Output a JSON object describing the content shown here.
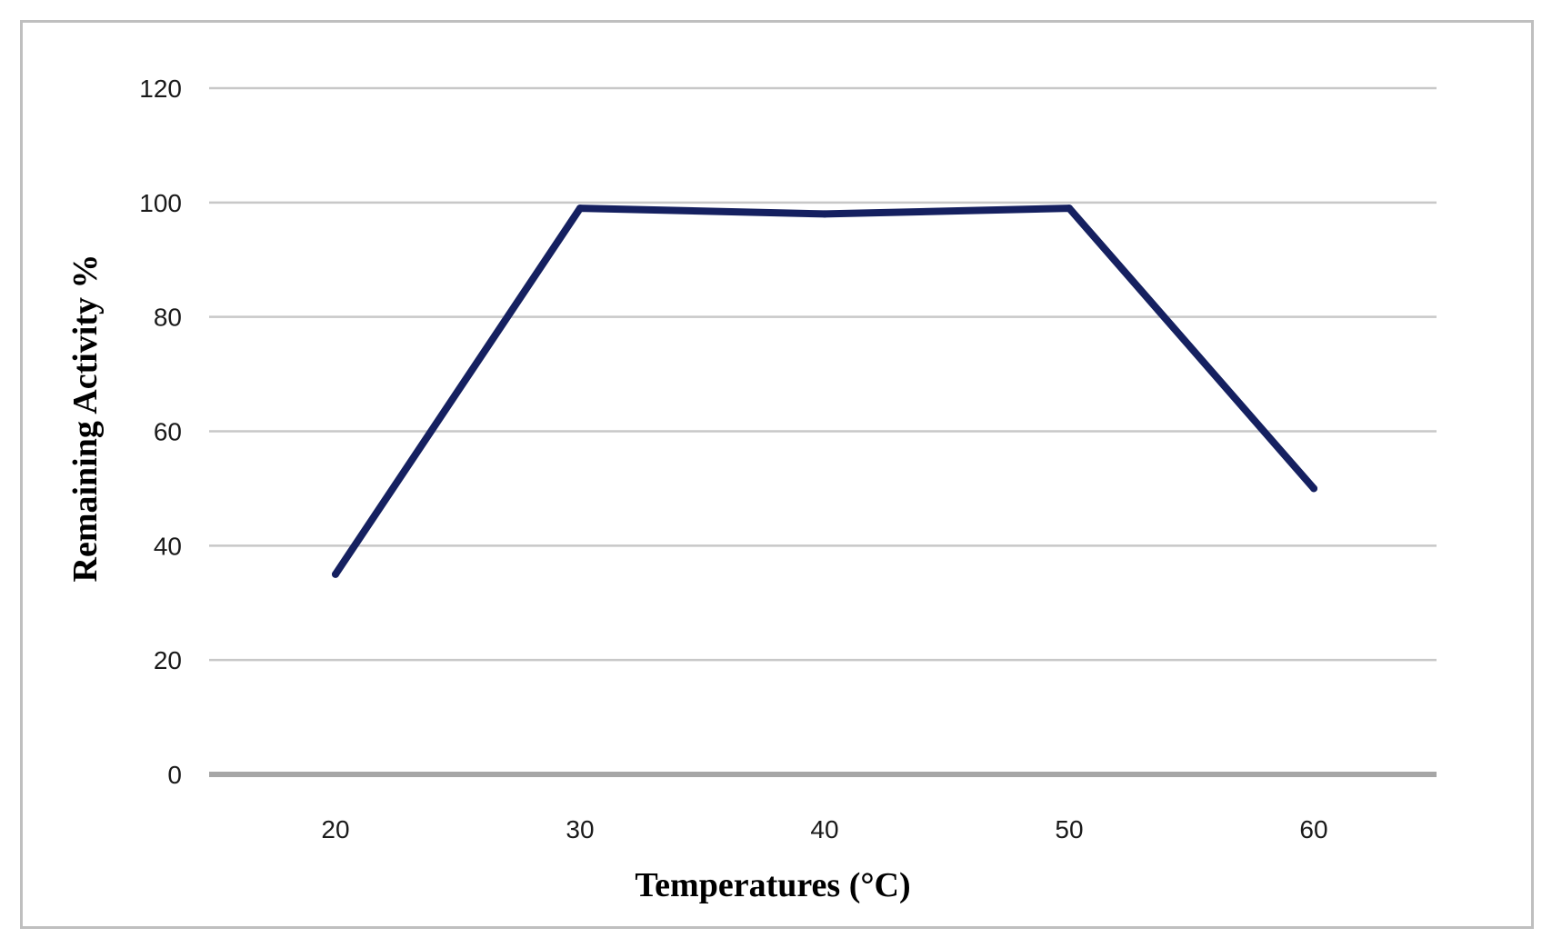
{
  "chart_data": {
    "type": "line",
    "title": "",
    "xlabel": "Temperatures (°C)",
    "ylabel": "Remaining Activity %",
    "x": [
      "20",
      "30",
      "40",
      "50",
      "60"
    ],
    "series": [
      {
        "values": [
          35,
          99,
          98,
          99,
          50
        ]
      }
    ],
    "ylim": [
      0,
      120
    ],
    "yticks": [
      0,
      20,
      40,
      60,
      80,
      100,
      120
    ],
    "grid": true,
    "legend": "none",
    "colors": {
      "line": "#152060",
      "grid": "#c8c8c8",
      "axis": "#a6a6a6",
      "frame": "#bfbfbf"
    }
  }
}
